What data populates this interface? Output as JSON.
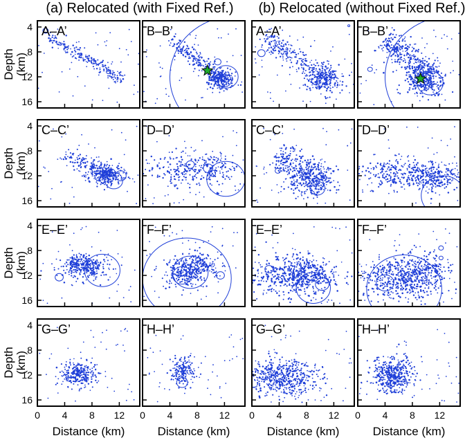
{
  "figure": {
    "column_titles": [
      "(a) Relocated (with Fixed Ref.)",
      "(b) Relocated (without Fixed Ref.)"
    ],
    "colors": {
      "events": "#1f3fd8",
      "mainshock": "#1faa2a",
      "frame": "#000000"
    }
  },
  "chart_data": {
    "type": "scatter",
    "description": "Depth cross-sections of relocated earthquakes along profiles A-A' to H-H'",
    "xlabel": "Distance  (km)",
    "ylabel": "Depth",
    "ylabel_unit": "(km)",
    "xlim": [
      0,
      15
    ],
    "ylim": [
      17,
      3
    ],
    "x_ticks": [
      0,
      4,
      8,
      12
    ],
    "y_ticks": [
      4,
      8,
      12,
      16
    ],
    "columns": [
      "with Fixed Ref.",
      "without Fixed Ref."
    ],
    "panels": [
      {
        "label": "A–A’",
        "method": "with Fixed Ref.",
        "clusters": [
          {
            "shape": "line",
            "x1": 1.5,
            "y1": 5.5,
            "x2": 12.5,
            "y2": 12.5,
            "width": 0.45,
            "n": 190
          }
        ],
        "rings": [
          {
            "x": 1.2,
            "y": 4.6,
            "r": 0.4
          },
          {
            "x": 8.2,
            "y": 9.6,
            "r": 0.35
          },
          {
            "x": 10.4,
            "y": 11.2,
            "r": 0.3
          }
        ]
      },
      {
        "label": "B–B’",
        "method": "with Fixed Ref.",
        "clusters": [
          {
            "shape": "line",
            "x1": 4.0,
            "y1": 6.0,
            "x2": 12.0,
            "y2": 12.5,
            "width": 0.55,
            "n": 210
          },
          {
            "shape": "blob",
            "x": 11.5,
            "y": 12.5,
            "sx": 1.0,
            "sy": 0.8,
            "n": 160
          }
        ],
        "rings": [
          {
            "x": 12.2,
            "y": 12.0,
            "r": 1.8
          },
          {
            "x": 12.0,
            "y": 12.6,
            "r": 1.0
          },
          {
            "x": 11.0,
            "y": 9.6,
            "r": 0.5
          },
          {
            "x": 13.8,
            "y": 12.0,
            "r": 9.8
          }
        ],
        "mainshock": {
          "x": 9.5,
          "y": 11.0
        }
      },
      {
        "label": "A–A’",
        "method": "without Fixed Ref.",
        "clusters": [
          {
            "shape": "line",
            "x1": 1.5,
            "y1": 5.5,
            "x2": 11.5,
            "y2": 12.5,
            "width": 0.85,
            "n": 260
          },
          {
            "shape": "blob",
            "x": 10.5,
            "y": 12.5,
            "sx": 1.3,
            "sy": 1.1,
            "n": 200
          }
        ],
        "rings": [
          {
            "x": 1.4,
            "y": 8.2,
            "r": 0.55
          },
          {
            "x": 14.2,
            "y": 3.8,
            "r": 0.15
          }
        ]
      },
      {
        "label": "B–B’",
        "method": "without Fixed Ref.",
        "clusters": [
          {
            "shape": "line",
            "x1": 4.0,
            "y1": 6.0,
            "x2": 11.0,
            "y2": 12.0,
            "width": 1.0,
            "n": 320
          },
          {
            "shape": "blob",
            "x": 10.0,
            "y": 12.5,
            "sx": 1.5,
            "sy": 1.3,
            "n": 260
          }
        ],
        "rings": [
          {
            "x": 10.6,
            "y": 13.0,
            "r": 1.9
          },
          {
            "x": 9.8,
            "y": 12.4,
            "r": 0.9
          },
          {
            "x": 13.8,
            "y": 12.0,
            "r": 9.8
          },
          {
            "x": 1.8,
            "y": 10.8,
            "r": 0.35
          }
        ],
        "mainshock": {
          "x": 9.2,
          "y": 12.3
        }
      },
      {
        "label": "C–C’",
        "method": "with Fixed Ref.",
        "clusters": [
          {
            "shape": "line",
            "x1": 4.0,
            "y1": 8.5,
            "x2": 11.5,
            "y2": 12.5,
            "width": 0.55,
            "n": 150
          },
          {
            "shape": "blob",
            "x": 10.0,
            "y": 12.0,
            "sx": 1.3,
            "sy": 0.8,
            "n": 220
          }
        ],
        "rings": [
          {
            "x": 11.2,
            "y": 12.8,
            "r": 1.3
          },
          {
            "x": 12.2,
            "y": 12.0,
            "r": 0.8
          },
          {
            "x": 10.8,
            "y": 11.5,
            "r": 0.6
          }
        ]
      },
      {
        "label": "D–D’",
        "method": "with Fixed Ref.",
        "clusters": [
          {
            "shape": "blob",
            "x": 6.0,
            "y": 11.0,
            "sx": 2.6,
            "sy": 1.4,
            "n": 170
          },
          {
            "shape": "blob",
            "x": 10.5,
            "y": 11.0,
            "sx": 1.6,
            "sy": 1.5,
            "n": 100
          }
        ],
        "rings": [
          {
            "x": 12.2,
            "y": 12.5,
            "r": 2.8
          },
          {
            "x": 7.0,
            "y": 10.2,
            "r": 0.6
          },
          {
            "x": 9.6,
            "y": 10.8,
            "r": 0.7
          },
          {
            "x": 10.2,
            "y": 11.6,
            "r": 0.5
          }
        ]
      },
      {
        "label": "C–C’",
        "method": "without Fixed Ref.",
        "clusters": [
          {
            "shape": "line",
            "x1": 3.5,
            "y1": 8.5,
            "x2": 11.0,
            "y2": 13.5,
            "width": 1.2,
            "n": 280
          },
          {
            "shape": "blob",
            "x": 8.5,
            "y": 12.5,
            "sx": 1.8,
            "sy": 1.3,
            "n": 200
          }
        ],
        "rings": [
          {
            "x": 9.6,
            "y": 14.0,
            "r": 1.1
          },
          {
            "x": 3.8,
            "y": 11.2,
            "r": 0.4
          }
        ]
      },
      {
        "label": "D–D’",
        "method": "without Fixed Ref.",
        "clusters": [
          {
            "shape": "blob",
            "x": 7.5,
            "y": 11.8,
            "sx": 4.0,
            "sy": 1.1,
            "n": 380
          },
          {
            "shape": "blob",
            "x": 11.5,
            "y": 12.5,
            "sx": 1.8,
            "sy": 1.0,
            "n": 120
          }
        ],
        "rings": [
          {
            "x": 12.5,
            "y": 15.2,
            "r": 3.2
          },
          {
            "x": 9.5,
            "y": 10.4,
            "r": 0.15
          }
        ]
      },
      {
        "label": "E–E’",
        "method": "with Fixed Ref.",
        "clusters": [
          {
            "shape": "line",
            "x1": 5.0,
            "y1": 9.5,
            "x2": 9.0,
            "y2": 11.0,
            "width": 0.6,
            "n": 140
          },
          {
            "shape": "blob",
            "x": 7.0,
            "y": 10.8,
            "sx": 2.0,
            "sy": 1.0,
            "n": 180
          }
        ],
        "rings": [
          {
            "x": 9.5,
            "y": 11.2,
            "r": 2.6
          },
          {
            "x": 3.2,
            "y": 12.3,
            "r": 0.6
          },
          {
            "x": 5.3,
            "y": 11.0,
            "r": 0.5
          }
        ]
      },
      {
        "label": "F–F’",
        "method": "with Fixed Ref.",
        "clusters": [
          {
            "shape": "blob",
            "x": 6.0,
            "y": 11.5,
            "sx": 1.6,
            "sy": 1.1,
            "n": 200
          },
          {
            "shape": "blob",
            "x": 8.5,
            "y": 10.5,
            "sx": 1.4,
            "sy": 1.0,
            "n": 160
          }
        ],
        "rings": [
          {
            "x": 6.5,
            "y": 12.5,
            "r": 6.5
          },
          {
            "x": 7.0,
            "y": 11.5,
            "r": 2.6
          },
          {
            "x": 5.8,
            "y": 12.0,
            "r": 1.4
          },
          {
            "x": 11.4,
            "y": 12.0,
            "r": 0.6
          }
        ]
      },
      {
        "label": "E–E’",
        "method": "without Fixed Ref.",
        "clusters": [
          {
            "shape": "blob",
            "x": 6.0,
            "y": 12.0,
            "sx": 2.8,
            "sy": 1.5,
            "n": 420
          },
          {
            "shape": "blob",
            "x": 9.0,
            "y": 12.5,
            "sx": 1.8,
            "sy": 1.5,
            "n": 160
          }
        ],
        "rings": [
          {
            "x": 9.0,
            "y": 14.0,
            "r": 2.5
          },
          {
            "x": 10.3,
            "y": 13.4,
            "r": 1.0
          },
          {
            "x": 2.5,
            "y": 11.0,
            "r": 0.6
          }
        ]
      },
      {
        "label": "F–F’",
        "method": "without Fixed Ref.",
        "clusters": [
          {
            "shape": "blob",
            "x": 6.5,
            "y": 12.5,
            "sx": 3.0,
            "sy": 1.6,
            "n": 480
          },
          {
            "shape": "blob",
            "x": 9.5,
            "y": 11.0,
            "sx": 1.8,
            "sy": 1.5,
            "n": 160
          }
        ],
        "rings": [
          {
            "x": 6.8,
            "y": 14.2,
            "r": 5.5
          },
          {
            "x": 4.0,
            "y": 13.2,
            "r": 1.3
          },
          {
            "x": 12.2,
            "y": 7.6,
            "r": 0.35
          },
          {
            "x": 12.2,
            "y": 9.2,
            "r": 0.3
          }
        ]
      },
      {
        "label": "G–G’",
        "method": "with Fixed Ref.",
        "clusters": [
          {
            "shape": "blob",
            "x": 6.0,
            "y": 11.8,
            "sx": 1.3,
            "sy": 1.0,
            "n": 260
          }
        ],
        "rings": []
      },
      {
        "label": "H–H’",
        "method": "with Fixed Ref.",
        "clusters": [
          {
            "shape": "blob",
            "x": 6.0,
            "y": 11.3,
            "sx": 0.9,
            "sy": 1.1,
            "n": 170
          }
        ],
        "rings": [
          {
            "x": 5.8,
            "y": 13.2,
            "r": 0.8
          },
          {
            "x": 5.6,
            "y": 12.6,
            "r": 0.45
          }
        ]
      },
      {
        "label": "G–G’",
        "method": "without Fixed Ref.",
        "clusters": [
          {
            "shape": "blob",
            "x": 4.5,
            "y": 12.3,
            "sx": 2.6,
            "sy": 1.4,
            "n": 520
          }
        ],
        "rings": []
      },
      {
        "label": "H–H’",
        "method": "without Fixed Ref.",
        "clusters": [
          {
            "shape": "blob",
            "x": 5.0,
            "y": 12.0,
            "sx": 1.5,
            "sy": 1.4,
            "n": 400
          }
        ],
        "rings": [
          {
            "x": 4.8,
            "y": 13.4,
            "r": 0.6
          }
        ]
      }
    ]
  }
}
